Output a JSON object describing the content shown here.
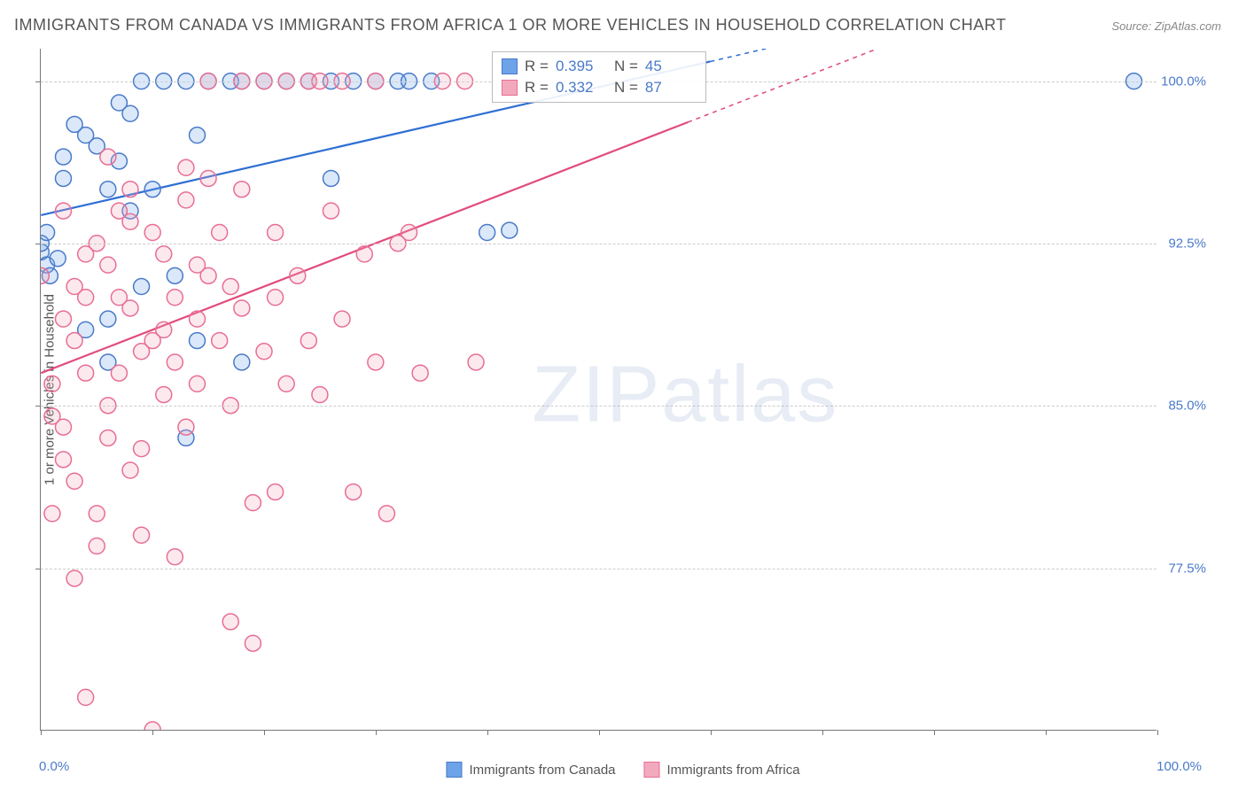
{
  "title": "IMMIGRANTS FROM CANADA VS IMMIGRANTS FROM AFRICA 1 OR MORE VEHICLES IN HOUSEHOLD CORRELATION CHART",
  "source": "Source: ZipAtlas.com",
  "watermark_a": "ZIP",
  "watermark_b": "atlas",
  "chart": {
    "type": "scatter",
    "y_axis_title": "1 or more Vehicles in Household",
    "xlim": [
      0,
      100
    ],
    "ylim": [
      70,
      101.5
    ],
    "x_tick_min_label": "0.0%",
    "x_tick_max_label": "100.0%",
    "x_ticks": [
      0,
      10,
      20,
      30,
      40,
      50,
      60,
      70,
      80,
      90,
      100
    ],
    "y_gridlines": [
      77.5,
      85.0,
      92.5,
      100.0
    ],
    "y_tick_labels": [
      "77.5%",
      "85.0%",
      "92.5%",
      "100.0%"
    ],
    "background_color": "#ffffff",
    "grid_color": "#cccccc",
    "axis_color": "#777777",
    "marker_radius": 9,
    "marker_stroke_width": 1.5,
    "marker_fill_opacity": 0.25,
    "line_width": 2.2,
    "series": [
      {
        "name": "Immigrants from Canada",
        "color": "#6da3e8",
        "stroke": "#4a7ac9",
        "line_color": "#2f6fd4",
        "r_value": "0.395",
        "n_value": "45",
        "trend": {
          "x1": 0,
          "y1": 93.8,
          "x2": 65,
          "y2": 101.5,
          "dash_after_x": 60
        },
        "points": [
          [
            0,
            92.1
          ],
          [
            0,
            92.5
          ],
          [
            0.5,
            91.5
          ],
          [
            0.5,
            93.0
          ],
          [
            1.5,
            91.8
          ],
          [
            0.8,
            91.0
          ],
          [
            2,
            95.5
          ],
          [
            2,
            96.5
          ],
          [
            4,
            97.5
          ],
          [
            3,
            98.0
          ],
          [
            5,
            97.0
          ],
          [
            6,
            95.0
          ],
          [
            7,
            96.3
          ],
          [
            7,
            99.0
          ],
          [
            8,
            98.5
          ],
          [
            9,
            100.0
          ],
          [
            11,
            100.0
          ],
          [
            13,
            100.0
          ],
          [
            15,
            100.0
          ],
          [
            17,
            100.0
          ],
          [
            18,
            100.0
          ],
          [
            20,
            100.0
          ],
          [
            22,
            100.0
          ],
          [
            24,
            100.0
          ],
          [
            26,
            100.0
          ],
          [
            28,
            100.0
          ],
          [
            30,
            100.0
          ],
          [
            32,
            100.0
          ],
          [
            33,
            100.0
          ],
          [
            35,
            100.0
          ],
          [
            40,
            93.0
          ],
          [
            12,
            91.0
          ],
          [
            10,
            95.0
          ],
          [
            4,
            88.5
          ],
          [
            6,
            89.0
          ],
          [
            13,
            83.5
          ],
          [
            9,
            90.5
          ],
          [
            6,
            87.0
          ],
          [
            18,
            87.0
          ],
          [
            14,
            88.0
          ],
          [
            42,
            93.1
          ],
          [
            98,
            100.0
          ],
          [
            26,
            95.5
          ],
          [
            8,
            94.0
          ],
          [
            14,
            97.5
          ]
        ]
      },
      {
        "name": "Immigrants from Africa",
        "color": "#f3a9bd",
        "stroke": "#e86e94",
        "line_color": "#e14c7c",
        "r_value": "0.332",
        "n_value": "87",
        "trend": {
          "x1": 0,
          "y1": 86.5,
          "x2": 75,
          "y2": 101.5,
          "dash_after_x": 58
        },
        "points": [
          [
            0,
            91.0
          ],
          [
            1,
            86.0
          ],
          [
            2,
            84.0
          ],
          [
            2,
            82.5
          ],
          [
            3,
            88.0
          ],
          [
            3,
            90.5
          ],
          [
            4,
            92.0
          ],
          [
            4,
            71.5
          ],
          [
            5,
            78.5
          ],
          [
            5,
            80.0
          ],
          [
            6,
            85.0
          ],
          [
            6,
            91.5
          ],
          [
            7,
            90.0
          ],
          [
            7,
            86.5
          ],
          [
            8,
            93.5
          ],
          [
            8,
            95.0
          ],
          [
            9,
            79.0
          ],
          [
            9,
            83.0
          ],
          [
            10,
            88.0
          ],
          [
            10,
            70.0
          ],
          [
            11,
            85.5
          ],
          [
            11,
            92.0
          ],
          [
            12,
            87.0
          ],
          [
            12,
            90.0
          ],
          [
            13,
            84.0
          ],
          [
            13,
            96.0
          ],
          [
            14,
            86.0
          ],
          [
            14,
            89.0
          ],
          [
            15,
            91.0
          ],
          [
            15,
            100.0
          ],
          [
            16,
            88.0
          ],
          [
            16,
            93.0
          ],
          [
            17,
            85.0
          ],
          [
            17,
            75.0
          ],
          [
            18,
            89.5
          ],
          [
            18,
            95.0
          ],
          [
            19,
            74.0
          ],
          [
            19,
            80.5
          ],
          [
            20,
            87.5
          ],
          [
            20,
            100.0
          ],
          [
            21,
            90.0
          ],
          [
            21,
            93.0
          ],
          [
            22,
            86.0
          ],
          [
            22,
            100.0
          ],
          [
            23,
            91.0
          ],
          [
            24,
            88.0
          ],
          [
            24,
            100.0
          ],
          [
            25,
            85.5
          ],
          [
            26,
            94.0
          ],
          [
            27,
            89.0
          ],
          [
            27,
            100.0
          ],
          [
            28,
            81.0
          ],
          [
            29,
            92.0
          ],
          [
            30,
            87.0
          ],
          [
            30,
            100.0
          ],
          [
            31,
            80.0
          ],
          [
            33,
            93.0
          ],
          [
            34,
            86.5
          ],
          [
            39,
            87.0
          ],
          [
            32,
            92.5
          ],
          [
            12,
            78.0
          ],
          [
            3,
            77.0
          ],
          [
            6,
            83.5
          ],
          [
            4,
            86.5
          ],
          [
            8,
            82.0
          ],
          [
            11,
            88.5
          ],
          [
            14,
            91.5
          ],
          [
            2,
            89.0
          ],
          [
            5,
            92.5
          ],
          [
            7,
            94.0
          ],
          [
            9,
            87.5
          ],
          [
            1,
            84.5
          ],
          [
            36,
            100.0
          ],
          [
            38,
            100.0
          ],
          [
            18,
            100.0
          ],
          [
            15,
            95.5
          ],
          [
            17,
            90.5
          ],
          [
            3,
            81.5
          ],
          [
            21,
            81.0
          ],
          [
            4,
            90.0
          ],
          [
            6,
            96.5
          ],
          [
            8,
            89.5
          ],
          [
            2,
            94.0
          ],
          [
            25,
            100.0
          ],
          [
            10,
            93.0
          ],
          [
            13,
            94.5
          ],
          [
            1,
            80.0
          ]
        ]
      }
    ]
  },
  "legend": {
    "series1_label": "Immigrants from Canada",
    "series2_label": "Immigrants from Africa"
  },
  "stats_labels": {
    "r": "R =",
    "n": "N ="
  }
}
